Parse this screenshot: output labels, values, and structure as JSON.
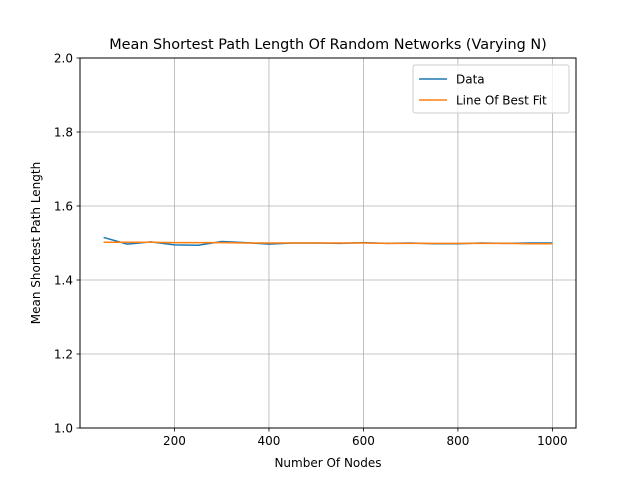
{
  "chart_data": {
    "type": "line",
    "title": "Mean Shortest Path Length Of Random Networks (Varying N)",
    "xlabel": "Number Of Nodes",
    "ylabel": "Mean Shortest Path Length",
    "xlim": [
      0,
      1050
    ],
    "ylim": [
      1.0,
      2.0
    ],
    "xticks": [
      200,
      400,
      600,
      800,
      1000
    ],
    "yticks": [
      1.0,
      1.2,
      1.4,
      1.6,
      1.8,
      2.0
    ],
    "ytick_labels": [
      "1.0",
      "1.2",
      "1.4",
      "1.6",
      "1.8",
      "2.0"
    ],
    "grid": true,
    "legend_position": "top-right",
    "series": [
      {
        "name": "Data",
        "color": "#1f77b4",
        "x": [
          50,
          100,
          150,
          200,
          250,
          300,
          350,
          400,
          450,
          500,
          550,
          600,
          650,
          700,
          750,
          800,
          850,
          900,
          950,
          1000
        ],
        "y": [
          1.515,
          1.497,
          1.503,
          1.495,
          1.494,
          1.504,
          1.501,
          1.497,
          1.5,
          1.5,
          1.499,
          1.501,
          1.499,
          1.5,
          1.498,
          1.498,
          1.5,
          1.499,
          1.5,
          1.5
        ]
      },
      {
        "name": "Line Of Best Fit",
        "color": "#ff7f0e",
        "x": [
          50,
          100,
          150,
          200,
          250,
          300,
          350,
          400,
          450,
          500,
          550,
          600,
          650,
          700,
          750,
          800,
          850,
          900,
          950,
          1000
        ],
        "y": [
          1.502,
          1.502,
          1.502,
          1.501,
          1.501,
          1.501,
          1.5,
          1.5,
          1.5,
          1.5,
          1.5,
          1.5,
          1.499,
          1.499,
          1.499,
          1.499,
          1.499,
          1.499,
          1.498,
          1.498
        ]
      }
    ]
  }
}
